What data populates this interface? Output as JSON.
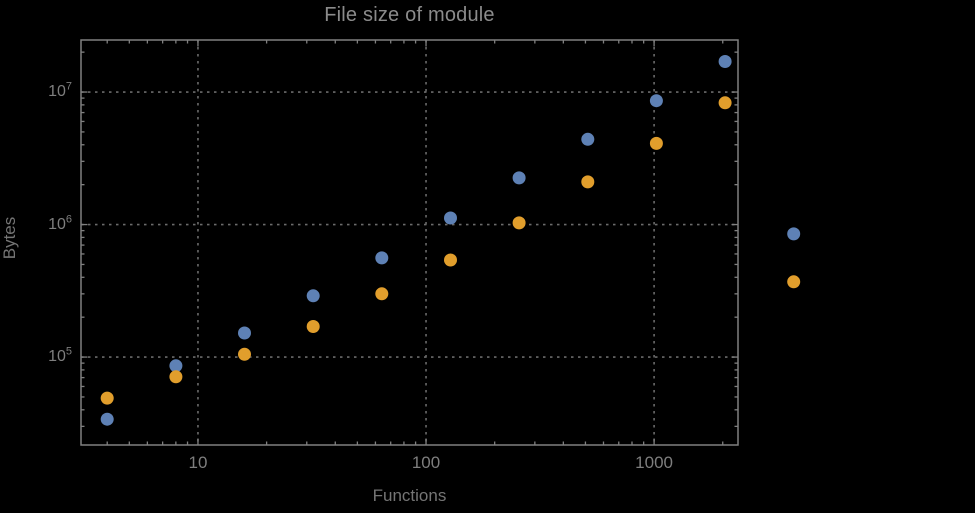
{
  "title": "File size of module",
  "axes": {
    "x_label": "Functions",
    "y_label": "Bytes",
    "x_tick_labels": [
      "10",
      "100",
      "1000"
    ],
    "y_tick_base": "10",
    "y_tick_exponents": [
      5,
      6,
      7
    ]
  },
  "colors": {
    "background": "#000000",
    "frame": "#808080",
    "tick": "#808080",
    "gridline": "#6b6b6b",
    "title_text": "#8b8b8b",
    "tick_text": "#7e7e7e",
    "axis_label_text": "#757575",
    "series_blue": "#5E81B5",
    "series_orange": "#E19E2C"
  },
  "chart_data": {
    "type": "scatter",
    "x_scale": "log",
    "y_scale": "log",
    "title": "File size of module",
    "xlabel": "Functions",
    "ylabel": "Bytes",
    "xlim": [
      3.07,
      2333
    ],
    "ylim": [
      21700,
      24700000
    ],
    "x_gridlines": [
      10,
      100,
      1000
    ],
    "y_gridlines": [
      100000,
      1000000,
      10000000
    ],
    "grid_style": "dashed",
    "legend": "none",
    "x": [
      4,
      8,
      16,
      32,
      64,
      128,
      256,
      512,
      1024,
      2048,
      4096
    ],
    "series": [
      {
        "name": "blue",
        "marker_color": "#5E81B5",
        "values": [
          34000,
          86000,
          152000,
          290000,
          560000,
          1120000,
          2250000,
          4400000,
          8600000,
          17000000,
          850000
        ]
      },
      {
        "name": "orange",
        "marker_color": "#E19E2C",
        "values": [
          49000,
          71000,
          105000,
          170000,
          300000,
          540000,
          1030000,
          2100000,
          4100000,
          8300000,
          370000
        ]
      }
    ],
    "note_clipping": "last points (x=4096) rendered outside right frame edge"
  }
}
